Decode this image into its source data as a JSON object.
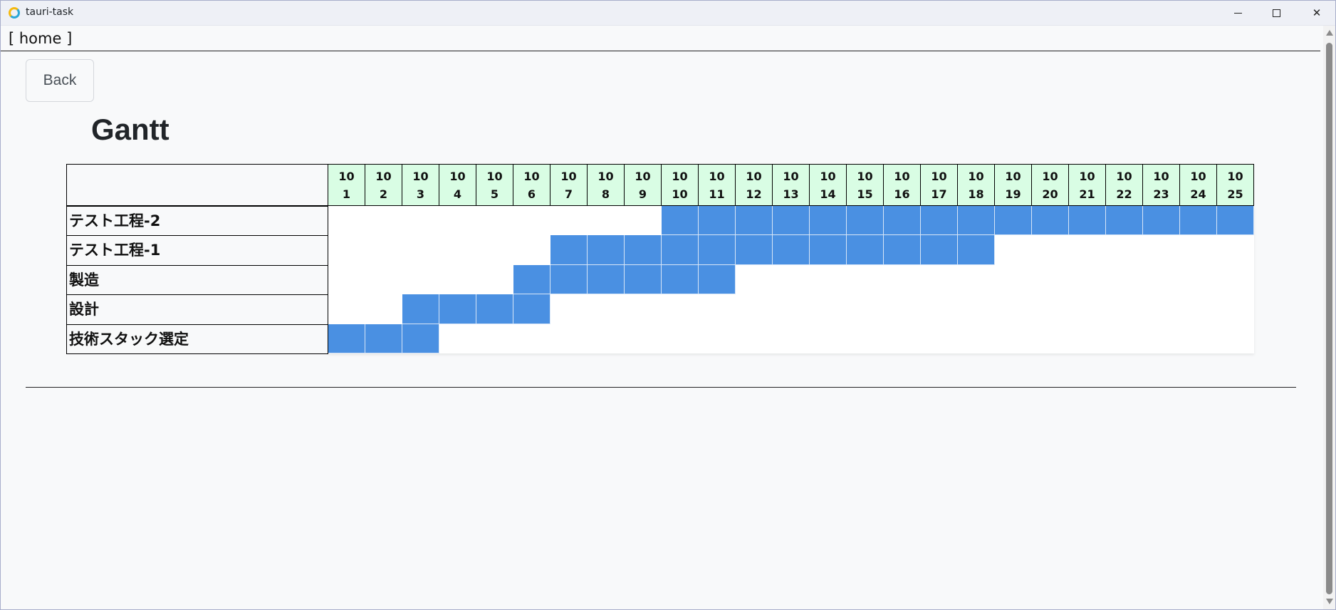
{
  "window": {
    "title": "tauri-task"
  },
  "nav": {
    "home_link": "[ home ]"
  },
  "page": {
    "back_label": "Back",
    "title": "Gantt"
  },
  "colors": {
    "header_bg": "#d9fde4",
    "bar": "#4a90e2"
  },
  "gantt": {
    "day_columns": [
      {
        "month": "10",
        "day": "1"
      },
      {
        "month": "10",
        "day": "2"
      },
      {
        "month": "10",
        "day": "3"
      },
      {
        "month": "10",
        "day": "4"
      },
      {
        "month": "10",
        "day": "5"
      },
      {
        "month": "10",
        "day": "6"
      },
      {
        "month": "10",
        "day": "7"
      },
      {
        "month": "10",
        "day": "8"
      },
      {
        "month": "10",
        "day": "9"
      },
      {
        "month": "10",
        "day": "10"
      },
      {
        "month": "10",
        "day": "11"
      },
      {
        "month": "10",
        "day": "12"
      },
      {
        "month": "10",
        "day": "13"
      },
      {
        "month": "10",
        "day": "14"
      },
      {
        "month": "10",
        "day": "15"
      },
      {
        "month": "10",
        "day": "16"
      },
      {
        "month": "10",
        "day": "17"
      },
      {
        "month": "10",
        "day": "18"
      },
      {
        "month": "10",
        "day": "19"
      },
      {
        "month": "10",
        "day": "20"
      },
      {
        "month": "10",
        "day": "21"
      },
      {
        "month": "10",
        "day": "22"
      },
      {
        "month": "10",
        "day": "23"
      },
      {
        "month": "10",
        "day": "24"
      },
      {
        "month": "10",
        "day": "25"
      }
    ],
    "tasks": [
      {
        "name": "テスト工程-2",
        "start_day": 10,
        "end_day": 25
      },
      {
        "name": "テスト工程-1",
        "start_day": 7,
        "end_day": 18
      },
      {
        "name": "製造",
        "start_day": 6,
        "end_day": 11
      },
      {
        "name": "設計",
        "start_day": 3,
        "end_day": 6
      },
      {
        "name": "技術スタック選定",
        "start_day": 1,
        "end_day": 3
      }
    ]
  }
}
